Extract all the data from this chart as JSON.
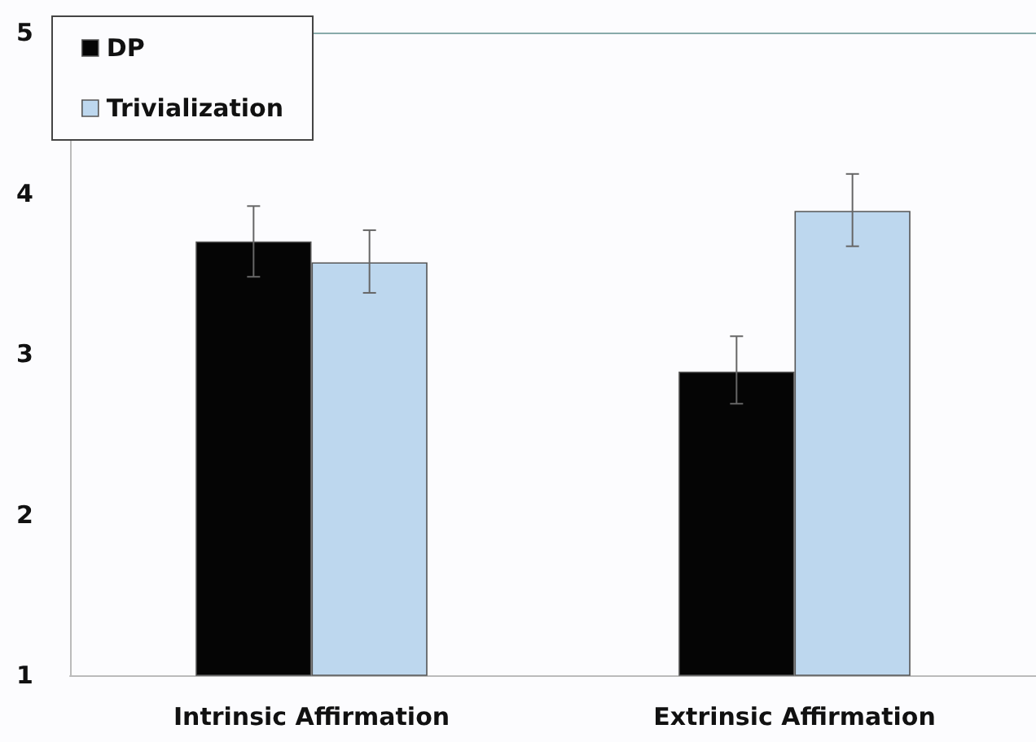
{
  "chart_data": {
    "type": "bar",
    "categories": [
      "Intrinsic Affirmation",
      "Extrinsic Affirmation"
    ],
    "series": [
      {
        "name": "DP",
        "color": "#050505",
        "values": [
          3.7,
          2.89
        ],
        "errors": [
          [
            3.48,
            3.92
          ],
          [
            2.69,
            3.11
          ]
        ]
      },
      {
        "name": "Trivialization",
        "color": "#bdd7ee",
        "values": [
          3.57,
          3.89
        ],
        "errors": [
          [
            3.38,
            3.77
          ],
          [
            3.67,
            4.12
          ]
        ]
      }
    ],
    "ylim": [
      1,
      5
    ],
    "yticks": [
      1,
      2,
      3,
      4,
      5
    ],
    "grid": false,
    "legend": "top left"
  }
}
